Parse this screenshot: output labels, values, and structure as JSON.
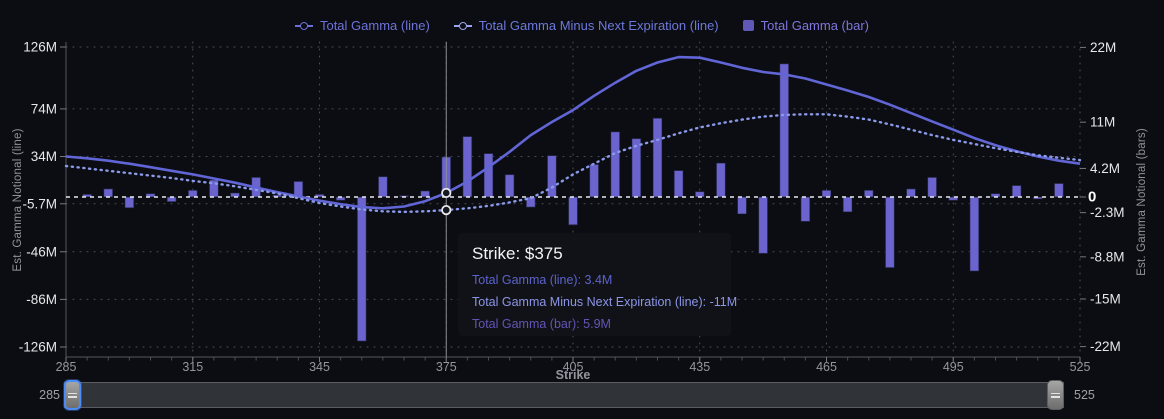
{
  "colors": {
    "bg": "#0b0d12",
    "bar": "#6b64cf",
    "bar_stroke": "rgba(22,24,38,0.65)",
    "line_solid": "#6165d6",
    "line_dotted": "#8b99ea",
    "zero_line": "#e8eaec",
    "grid": "#4b5058",
    "axis_line": "#54585e",
    "tick_mark": "#75797f",
    "tick_label": "#e5e7ea",
    "zero_label": "#ffffff",
    "x_tick_label": "#93979d",
    "axis_title": "#90949a",
    "crosshair": "#8a8d92",
    "dot_fill": "#161822",
    "dot_ring": "#e9eaee",
    "tooltip_bg": "#121318",
    "slider_label": "#9fa2a7"
  },
  "legend": {
    "items": [
      {
        "label": "Total Gamma (line)",
        "marker": "line-dot",
        "marker_color": "#6a71d5",
        "text_color": "#6d73d8"
      },
      {
        "label": "Total Gamma Minus Next Expiration (line)",
        "marker": "line-dot",
        "marker_color": "#98a4ee",
        "text_color": "#6d79da"
      },
      {
        "label": "Total Gamma (bar)",
        "marker": "square",
        "marker_color": "#5f58b8",
        "text_color": "#7e76dc"
      }
    ]
  },
  "axes": {
    "left": {
      "title": "Est. Gamma Notional (line)",
      "ticks": [
        {
          "v": 126,
          "label": "126M"
        },
        {
          "v": 74,
          "label": "74M"
        },
        {
          "v": 34,
          "label": "34M"
        },
        {
          "v": -5.7,
          "label": "-5.7M"
        },
        {
          "v": -46,
          "label": "-46M"
        },
        {
          "v": -86,
          "label": "-86M"
        },
        {
          "v": -126,
          "label": "-126M"
        }
      ]
    },
    "right": {
      "title": "Est. Gamma Notional (bars)",
      "ticks": [
        {
          "v": 22,
          "label": "22M",
          "emph": false
        },
        {
          "v": 11,
          "label": "11M",
          "emph": false
        },
        {
          "v": 4.2,
          "label": "4.2M",
          "emph": false
        },
        {
          "v": 0,
          "label": "0",
          "emph": true
        },
        {
          "v": -2.3,
          "label": "-2.3M",
          "emph": false
        },
        {
          "v": -8.8,
          "label": "-8.8M",
          "emph": false
        },
        {
          "v": -15,
          "label": "-15M",
          "emph": false
        },
        {
          "v": -22,
          "label": "-22M",
          "emph": false
        }
      ]
    },
    "x": {
      "title": "Strike",
      "min": 285,
      "max": 525,
      "minor_step": 5,
      "ticks": [
        {
          "v": 285,
          "label": "285"
        },
        {
          "v": 315,
          "label": "315"
        },
        {
          "v": 345,
          "label": "345"
        },
        {
          "v": 375,
          "label": "375"
        },
        {
          "v": 405,
          "label": "405"
        },
        {
          "v": 435,
          "label": "435"
        },
        {
          "v": 465,
          "label": "465"
        },
        {
          "v": 495,
          "label": "495"
        },
        {
          "v": 525,
          "label": "525"
        }
      ]
    }
  },
  "chart_data": {
    "type": "combo",
    "xlabel": "Strike",
    "x_range": [
      285,
      525
    ],
    "left_axis": {
      "label": "Est. Gamma Notional (line)",
      "range_M": [
        -126,
        126
      ]
    },
    "right_axis": {
      "label": "Est. Gamma Notional (bars)",
      "range_M": [
        -23.5,
        22.8
      ]
    },
    "bars": {
      "name": "Total Gamma (bar)",
      "axis": "right",
      "strike_start": 290,
      "strike_step": 5,
      "values_M": [
        0.4,
        1.2,
        -1.6,
        0.5,
        -0.7,
        1.0,
        2.5,
        0.6,
        2.9,
        0.3,
        2.3,
        0.4,
        -0.5,
        -21.2,
        3.0,
        0.2,
        0.9,
        5.9,
        8.9,
        6.4,
        3.3,
        -1.5,
        6.1,
        -4.1,
        4.8,
        9.6,
        8.6,
        11.6,
        3.9,
        0.8,
        5.0,
        -2.5,
        -8.3,
        19.6,
        -3.6,
        1.0,
        -2.2,
        1.0,
        -10.4,
        1.2,
        2.9,
        -0.5,
        -10.9,
        0.5,
        1.7,
        -0.3,
        2.0
      ]
    },
    "lines": [
      {
        "name": "Total Gamma (line)",
        "axis": "left",
        "style": "solid",
        "strike_start": 285,
        "strike_step": 5,
        "values_M": [
          34,
          32.5,
          30.5,
          28,
          25,
          22,
          19,
          15.5,
          12,
          8,
          4,
          0.5,
          -3,
          -6,
          -8.5,
          -9.5,
          -8,
          -3.5,
          3.4,
          13,
          25,
          38,
          52,
          63,
          73,
          85,
          96,
          106,
          113,
          117.5,
          117,
          113,
          108.5,
          105,
          103,
          99.5,
          94.5,
          89.5,
          84,
          77.5,
          70.5,
          63.5,
          56.5,
          49.5,
          43.5,
          38.5,
          34,
          30.5,
          28
        ]
      },
      {
        "name": "Total Gamma Minus Next Expiration (line)",
        "axis": "left",
        "style": "dotted",
        "strike_start": 285,
        "strike_step": 5,
        "values_M": [
          26,
          24,
          22,
          20,
          18,
          16,
          13.5,
          11.5,
          9,
          6,
          3,
          -1,
          -5,
          -8,
          -10.5,
          -12,
          -12.5,
          -12,
          -11,
          -9.5,
          -7.5,
          -4.5,
          -1,
          8,
          19,
          28,
          37,
          43,
          48,
          53.5,
          58.5,
          62,
          65,
          67.5,
          69,
          69.5,
          69.5,
          67.5,
          65,
          61,
          56.5,
          52,
          48,
          44.5,
          41,
          38,
          35,
          33,
          31
        ]
      }
    ],
    "highlight": {
      "strike": 375,
      "line_M": 3.4,
      "minus_next_M": -11,
      "bar_M": 5.9
    }
  },
  "tooltip": {
    "title": "Strike: $375",
    "rows": [
      {
        "text": "Total Gamma (line): 3.4M",
        "color": "#5c63cb"
      },
      {
        "text": "Total Gamma Minus Next Expiration (line): -11M",
        "color": "#8c95e7"
      },
      {
        "text": "Total Gamma (bar): 5.9M",
        "color": "#6056b6"
      }
    ]
  },
  "slider": {
    "min_label": "285",
    "max_label": "525"
  }
}
